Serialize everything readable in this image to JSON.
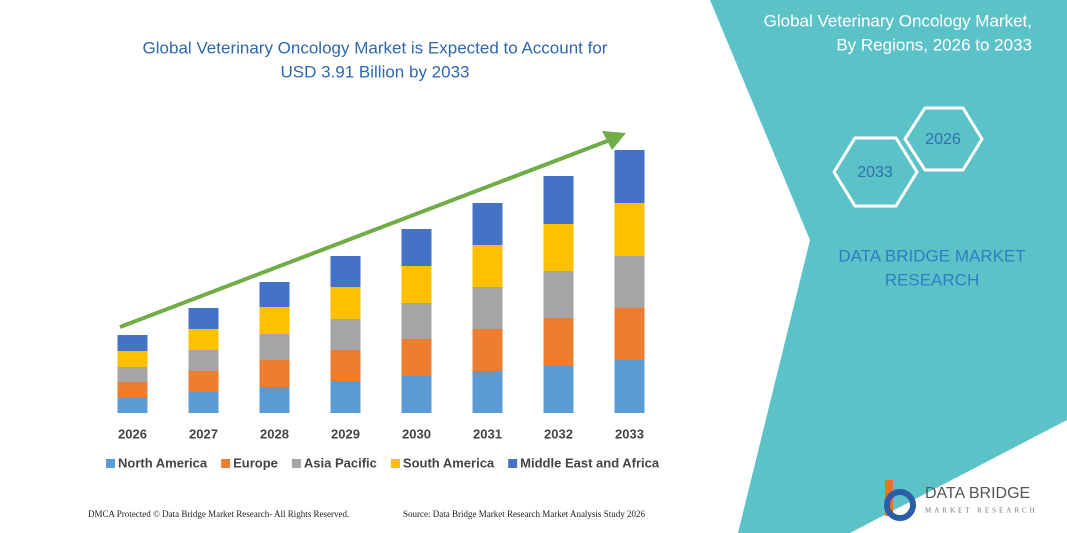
{
  "chart_data": {
    "type": "stacked_bar",
    "title_lines": [
      "Global Veterinary Oncology Market is Expected to Account for",
      "USD 3.91 Billion by 2033"
    ],
    "categories": [
      "2026",
      "2027",
      "2028",
      "2029",
      "2030",
      "2031",
      "2032",
      "2033"
    ],
    "series": [
      {
        "name": "North America",
        "color": "#5b9bd5",
        "values": [
          15,
          21,
          26,
          32,
          37,
          42,
          47,
          53
        ]
      },
      {
        "name": "Europe",
        "color": "#ed7d31",
        "values": [
          16,
          21,
          27,
          31,
          37,
          42,
          48,
          52
        ]
      },
      {
        "name": "Asia Pacific",
        "color": "#a5a5a5",
        "values": [
          15,
          21,
          26,
          31,
          36,
          42,
          47,
          52
        ]
      },
      {
        "name": "South America",
        "color": "#ffc000",
        "values": [
          16,
          21,
          27,
          32,
          37,
          42,
          47,
          53
        ]
      },
      {
        "name": "Middle East and Africa",
        "color": "#4472c4",
        "values": [
          16,
          21,
          25,
          31,
          37,
          42,
          48,
          53
        ]
      }
    ],
    "legend": "bottom",
    "grid": false
  },
  "panel": {
    "title_lines": [
      "Global Veterinary Oncology Market,",
      "By Regions, 2026 to 2033"
    ],
    "hex_labels": [
      "2026",
      "2033"
    ],
    "brand_lines": [
      "DATA BRIDGE MARKET",
      "RESEARCH"
    ]
  },
  "logo": {
    "name": "DATA BRIDGE",
    "tagline": "MARKET RESEARCH"
  },
  "footer": {
    "left": "DMCA Protected © Data Bridge Market Research- All Rights Reserved.",
    "right": "Source: Data Bridge Market Research  Market Analysis Study 2026"
  }
}
